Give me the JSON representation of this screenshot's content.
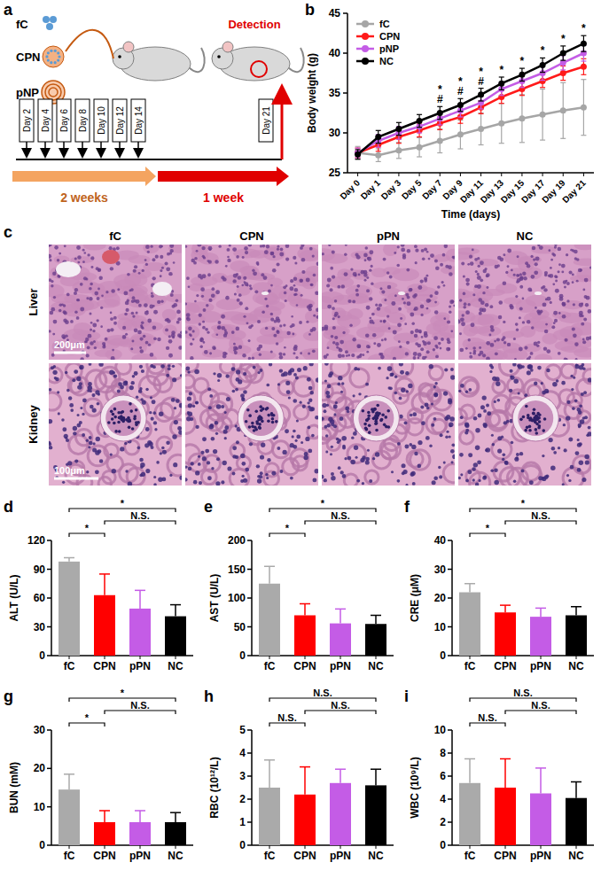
{
  "schematic": {
    "panel": "a",
    "items": [
      "fC",
      "CPN",
      "pNP"
    ],
    "detection": "Detection",
    "days": [
      "Day 2",
      "Day 4",
      "Day 6",
      "Day 8",
      "Day 10",
      "Day 12",
      "Day 14"
    ],
    "end_day": "Day 21",
    "phases": [
      "2 weeks",
      "1 week"
    ]
  },
  "histology": {
    "panel": "c",
    "columns": [
      "fC",
      "CPN",
      "pPN",
      "NC"
    ],
    "rows": [
      "Liver",
      "Kidney"
    ],
    "scale_bars": [
      "200μm",
      "100μm"
    ]
  },
  "chart_data": [
    {
      "panel": "b",
      "type": "line",
      "x_label": "Time (days)",
      "y_label": "Body weight (g)",
      "categories": [
        "Day 0",
        "Day 1",
        "Day 3",
        "Day 5",
        "Day 7",
        "Day 9",
        "Day 11",
        "Day 13",
        "Day 15",
        "Day 17",
        "Day 19",
        "Day 21"
      ],
      "ylim": [
        25,
        45
      ],
      "yticks": [
        25,
        30,
        35,
        40,
        45
      ],
      "grid": false,
      "legend": "top-left",
      "marker": "circle",
      "series": [
        {
          "name": "fC",
          "color": "#a6a6a6",
          "values": [
            27.5,
            27.2,
            27.8,
            28.2,
            29.0,
            29.8,
            30.5,
            31.2,
            31.8,
            32.3,
            32.8,
            33.2
          ],
          "errors": [
            0.8,
            0.8,
            1.0,
            1.2,
            1.5,
            1.8,
            2.0,
            2.5,
            3.0,
            3.2,
            3.5,
            3.5
          ]
        },
        {
          "name": "CPN",
          "color": "#ff1a1a",
          "values": [
            27.5,
            28.5,
            29.5,
            30.3,
            31.2,
            32.0,
            33.2,
            34.5,
            35.5,
            36.5,
            37.5,
            38.3
          ],
          "errors": [
            0.6,
            0.8,
            0.8,
            0.8,
            0.8,
            0.8,
            0.8,
            0.8,
            0.8,
            0.8,
            0.9,
            1.0
          ]
        },
        {
          "name": "pNP",
          "color": "#c45ce6",
          "values": [
            27.5,
            29.0,
            30.0,
            30.8,
            31.8,
            32.8,
            33.8,
            35.5,
            36.5,
            37.5,
            38.8,
            40.0
          ],
          "errors": [
            0.6,
            0.8,
            0.8,
            0.8,
            0.8,
            0.8,
            0.8,
            0.8,
            0.8,
            0.9,
            0.9,
            1.0
          ]
        },
        {
          "name": "NC",
          "color": "#000000",
          "values": [
            27.3,
            29.5,
            30.5,
            31.5,
            32.5,
            33.5,
            34.8,
            36.2,
            37.3,
            38.5,
            40.0,
            41.2
          ],
          "errors": [
            0.6,
            0.8,
            0.8,
            0.8,
            0.8,
            0.8,
            0.8,
            0.8,
            0.8,
            0.9,
            0.9,
            1.0
          ]
        }
      ],
      "annotations": [
        {
          "x": "Day 7",
          "text": "#"
        },
        {
          "x": "Day 7",
          "text": "*"
        },
        {
          "x": "Day 9",
          "text": "#"
        },
        {
          "x": "Day 9",
          "text": "*"
        },
        {
          "x": "Day 11",
          "text": "#"
        },
        {
          "x": "Day 11",
          "text": "*"
        },
        {
          "x": "Day 13",
          "text": "*"
        },
        {
          "x": "Day 15",
          "text": "*"
        },
        {
          "x": "Day 17",
          "text": "*"
        },
        {
          "x": "Day 19",
          "text": "*"
        },
        {
          "x": "Day 21",
          "text": "*"
        }
      ]
    },
    {
      "panel": "d",
      "type": "bar",
      "y_label": "ALT (U/L)",
      "categories": [
        "fC",
        "CPN",
        "pPN",
        "NC"
      ],
      "values": [
        98,
        63,
        49,
        41
      ],
      "errors": [
        4,
        22,
        19,
        12
      ],
      "colors": [
        "#aaaaaa",
        "#ff0000",
        "#c45ce6",
        "#000000"
      ],
      "ylim": [
        0,
        120
      ],
      "yticks": [
        0,
        30,
        60,
        90,
        120
      ],
      "grid": false,
      "annotations": [
        {
          "from": "fC",
          "to": "CPN",
          "text": "*"
        },
        {
          "from": "CPN",
          "to": "NC",
          "text": "N.S."
        },
        {
          "from": "fC",
          "to": "NC",
          "text": "*"
        }
      ]
    },
    {
      "panel": "e",
      "type": "bar",
      "y_label": "AST (U/L)",
      "categories": [
        "fC",
        "CPN",
        "pPN",
        "NC"
      ],
      "values": [
        125,
        70,
        56,
        55
      ],
      "errors": [
        30,
        20,
        25,
        15
      ],
      "colors": [
        "#aaaaaa",
        "#ff0000",
        "#c45ce6",
        "#000000"
      ],
      "ylim": [
        0,
        200
      ],
      "yticks": [
        0,
        50,
        100,
        150,
        200
      ],
      "grid": false,
      "annotations": [
        {
          "from": "fC",
          "to": "CPN",
          "text": "*"
        },
        {
          "from": "CPN",
          "to": "NC",
          "text": "N.S."
        },
        {
          "from": "fC",
          "to": "NC",
          "text": "*"
        }
      ]
    },
    {
      "panel": "f",
      "type": "bar",
      "y_label": "CRE (μM)",
      "categories": [
        "fC",
        "CPN",
        "pPN",
        "NC"
      ],
      "values": [
        22,
        15,
        13.5,
        14
      ],
      "errors": [
        3,
        2.5,
        3,
        3
      ],
      "colors": [
        "#aaaaaa",
        "#ff0000",
        "#c45ce6",
        "#000000"
      ],
      "ylim": [
        0,
        40
      ],
      "yticks": [
        0,
        10,
        20,
        30,
        40
      ],
      "grid": false,
      "annotations": [
        {
          "from": "fC",
          "to": "CPN",
          "text": "*"
        },
        {
          "from": "CPN",
          "to": "NC",
          "text": "N.S."
        },
        {
          "from": "fC",
          "to": "NC",
          "text": "*"
        }
      ]
    },
    {
      "panel": "g",
      "type": "bar",
      "y_label": "BUN (mM)",
      "categories": [
        "fC",
        "CPN",
        "pPN",
        "NC"
      ],
      "values": [
        14.5,
        6,
        6,
        6
      ],
      "errors": [
        4,
        3,
        3,
        2.5
      ],
      "colors": [
        "#aaaaaa",
        "#ff0000",
        "#c45ce6",
        "#000000"
      ],
      "ylim": [
        0,
        30
      ],
      "yticks": [
        0,
        10,
        20,
        30
      ],
      "grid": false,
      "annotations": [
        {
          "from": "fC",
          "to": "CPN",
          "text": "*"
        },
        {
          "from": "CPN",
          "to": "NC",
          "text": "N.S."
        },
        {
          "from": "fC",
          "to": "NC",
          "text": "*"
        }
      ]
    },
    {
      "panel": "h",
      "type": "bar",
      "y_label": "RBC (10¹²/L)",
      "categories": [
        "fC",
        "CPN",
        "pPN",
        "NC"
      ],
      "values": [
        2.5,
        2.2,
        2.7,
        2.6
      ],
      "errors": [
        1.2,
        1.2,
        0.6,
        0.7
      ],
      "colors": [
        "#aaaaaa",
        "#ff0000",
        "#c45ce6",
        "#000000"
      ],
      "ylim": [
        0,
        5
      ],
      "yticks": [
        0,
        1,
        2,
        3,
        4,
        5
      ],
      "grid": false,
      "annotations": [
        {
          "from": "fC",
          "to": "CPN",
          "text": "N.S."
        },
        {
          "from": "CPN",
          "to": "NC",
          "text": "N.S."
        },
        {
          "from": "fC",
          "to": "NC",
          "text": "N.S."
        }
      ]
    },
    {
      "panel": "i",
      "type": "bar",
      "y_label": "WBC (10⁹/L)",
      "categories": [
        "fC",
        "CPN",
        "pPN",
        "NC"
      ],
      "values": [
        5.4,
        5.0,
        4.5,
        4.1
      ],
      "errors": [
        2.1,
        2.5,
        2.2,
        1.4
      ],
      "colors": [
        "#aaaaaa",
        "#ff0000",
        "#c45ce6",
        "#000000"
      ],
      "ylim": [
        0,
        10
      ],
      "yticks": [
        0,
        2,
        4,
        6,
        8,
        10
      ],
      "grid": false,
      "annotations": [
        {
          "from": "fC",
          "to": "CPN",
          "text": "N.S."
        },
        {
          "from": "CPN",
          "to": "NC",
          "text": "N.S."
        },
        {
          "from": "fC",
          "to": "NC",
          "text": "N.S."
        }
      ]
    }
  ]
}
